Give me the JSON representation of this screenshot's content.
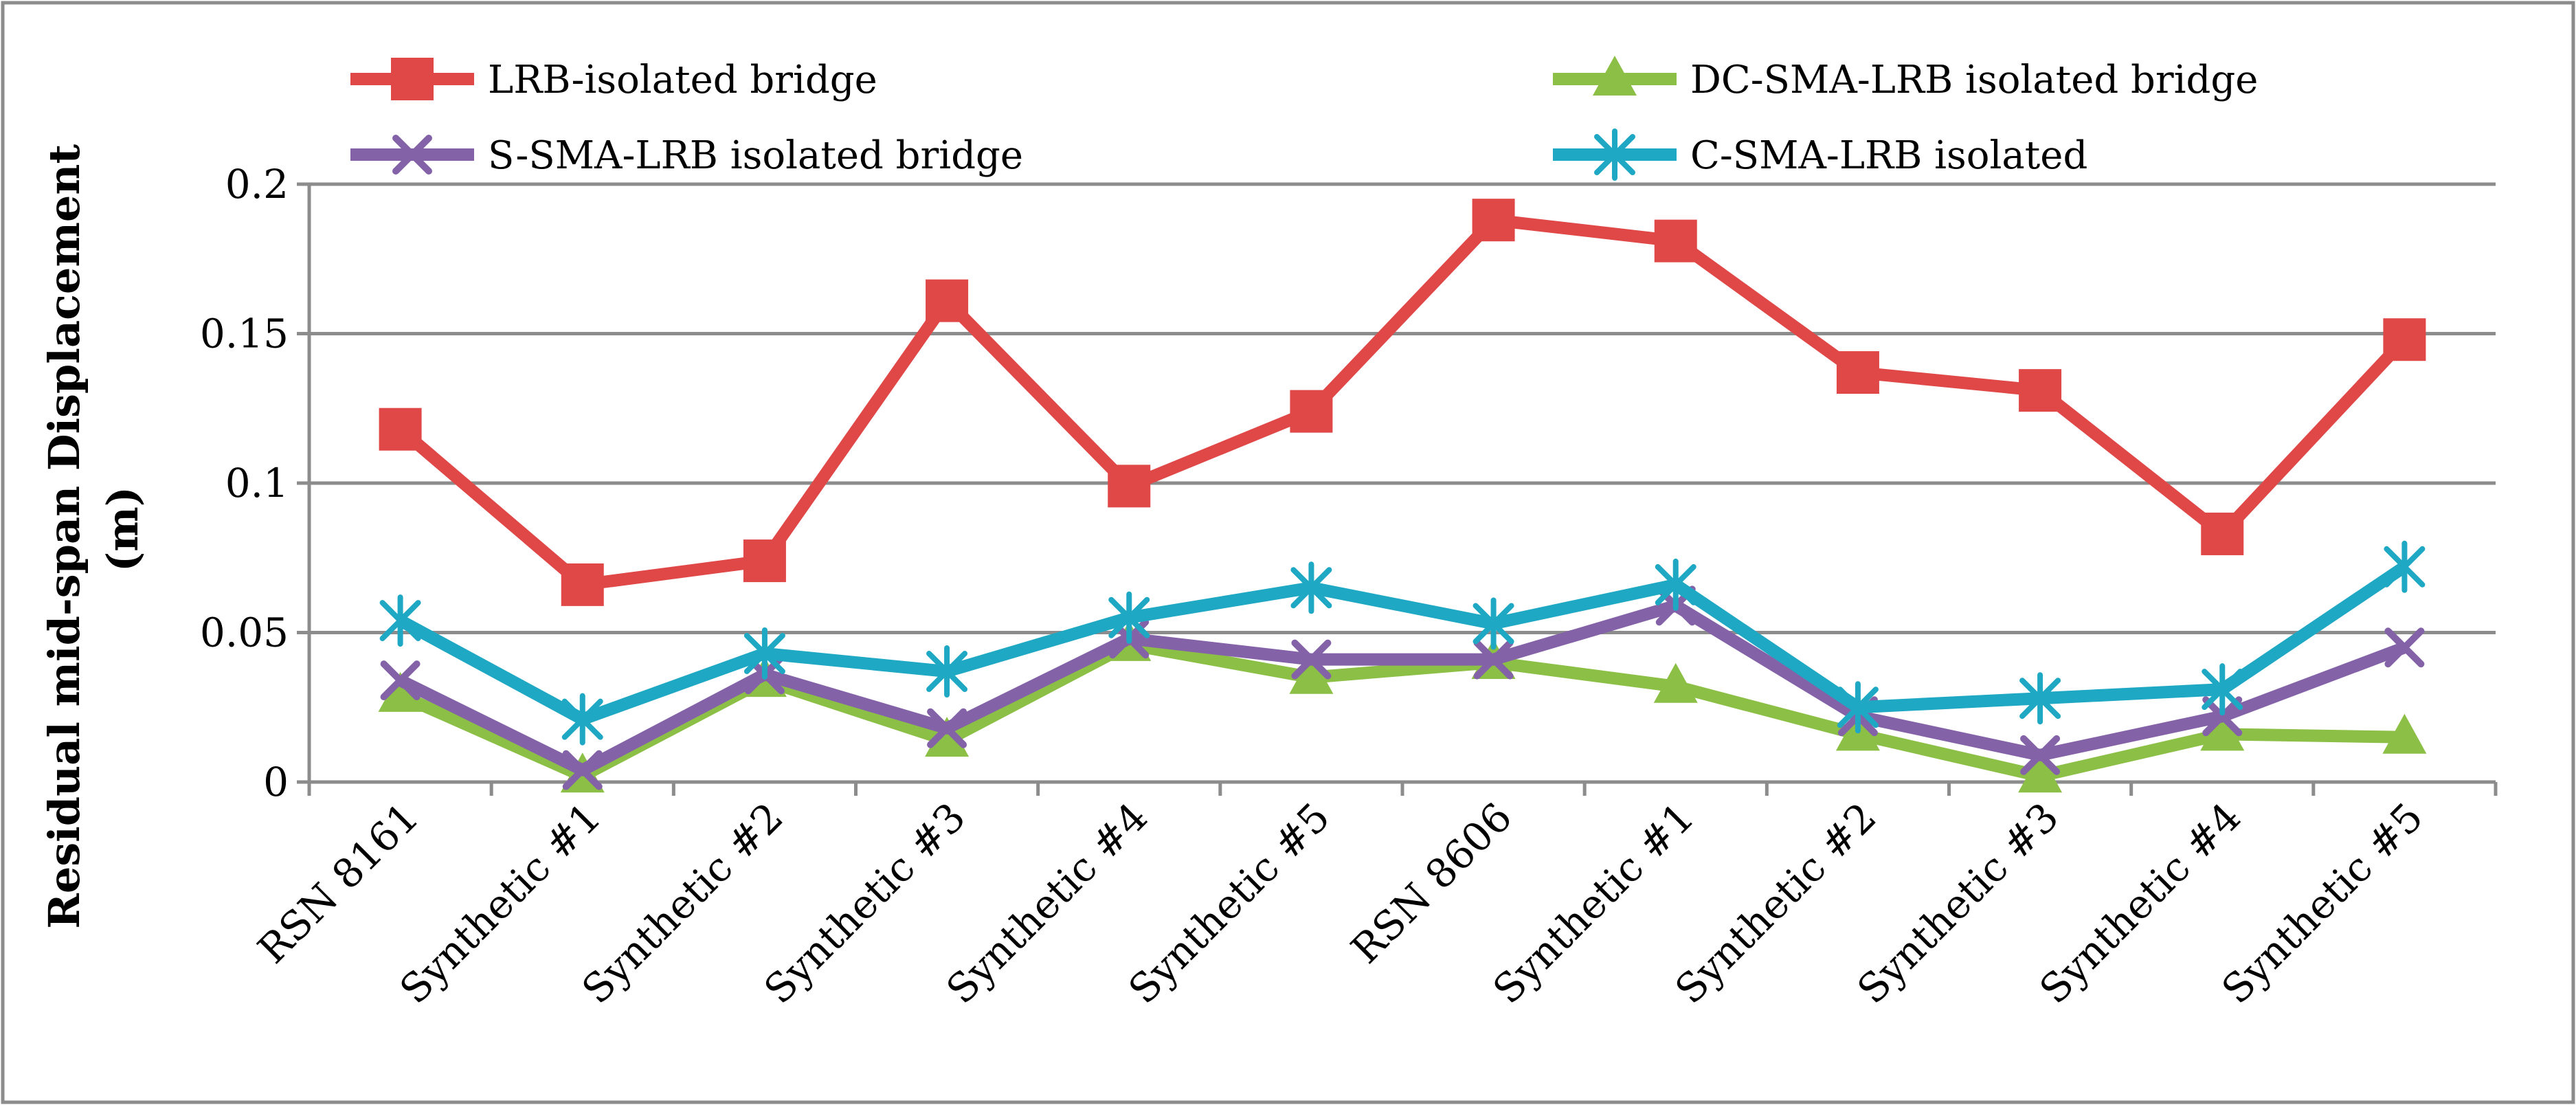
{
  "chart_data": {
    "type": "line",
    "title": "",
    "xlabel": "",
    "ylabel": "Residual mid-span Displacement",
    "ylabel_unit": "(m)",
    "ylim": [
      0,
      0.2
    ],
    "yticks": [
      0,
      0.05,
      0.1,
      0.15,
      0.2
    ],
    "ytick_labels": [
      "0",
      "0.05",
      "0.1",
      "0.15",
      "0.2"
    ],
    "grid": true,
    "legend_position": "top",
    "categories": [
      "RSN 8161",
      "Synthetic #1",
      "Synthetic #2",
      "Synthetic #3",
      "Synthetic #4",
      "Synthetic #5",
      "RSN 8606",
      "Synthetic #1",
      "Synthetic #2",
      "Synthetic #3",
      "Synthetic #4",
      "Synthetic #5"
    ],
    "series": [
      {
        "name": "LRB-isolated bridge",
        "color": "#e04848",
        "marker": "square",
        "values": [
          0.118,
          0.066,
          0.074,
          0.161,
          0.099,
          0.124,
          0.188,
          0.181,
          0.137,
          0.131,
          0.083,
          0.148
        ]
      },
      {
        "name": "DC-SMA-LRB isolated bridge",
        "color": "#8cbf45",
        "marker": "triangle",
        "values": [
          0.029,
          0.002,
          0.034,
          0.014,
          0.046,
          0.035,
          0.04,
          0.032,
          0.016,
          0.002,
          0.016,
          0.015
        ]
      },
      {
        "name": "S-SMA-LRB isolated bridge",
        "color": "#8462a8",
        "marker": "x",
        "values": [
          0.034,
          0.004,
          0.036,
          0.018,
          0.048,
          0.041,
          0.041,
          0.059,
          0.022,
          0.009,
          0.022,
          0.045
        ]
      },
      {
        "name": "C-SMA-LRB isolated",
        "color": "#1fa8c4",
        "marker": "asterisk",
        "values": [
          0.054,
          0.021,
          0.043,
          0.037,
          0.055,
          0.065,
          0.053,
          0.066,
          0.025,
          0.028,
          0.031,
          0.072
        ]
      }
    ]
  }
}
